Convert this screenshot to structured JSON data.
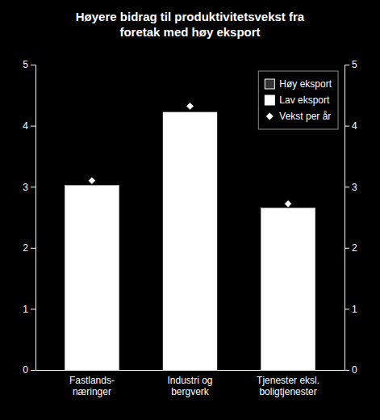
{
  "chart_data": {
    "type": "bar",
    "title": "Høyere bidrag til produktivitetsvekst fra\nforetak med høy eksport",
    "categories": [
      "Fastlands-\nnæringer",
      "Industri og\nbergverk",
      "Tjenester eksl.\nboligtjenester"
    ],
    "series": [
      {
        "name": "Høy eksport",
        "type": "bar",
        "color": "#333333",
        "values": [
          null,
          null,
          null
        ]
      },
      {
        "name": "Lav eksport",
        "type": "bar",
        "color": "#ffffff",
        "values": [
          3.02,
          4.22,
          2.65
        ]
      },
      {
        "name": "Vekst per år",
        "type": "scatter",
        "color": "#ffffff",
        "marker": "diamond",
        "values": [
          3.1,
          4.32,
          2.72
        ]
      }
    ],
    "ylim": [
      0,
      5
    ],
    "yticks": [
      0,
      1,
      2,
      3,
      4,
      5
    ],
    "y2lim": [
      0,
      5
    ],
    "y2ticks": [
      0,
      1,
      2,
      3,
      4,
      5
    ],
    "legend": "upper right"
  }
}
